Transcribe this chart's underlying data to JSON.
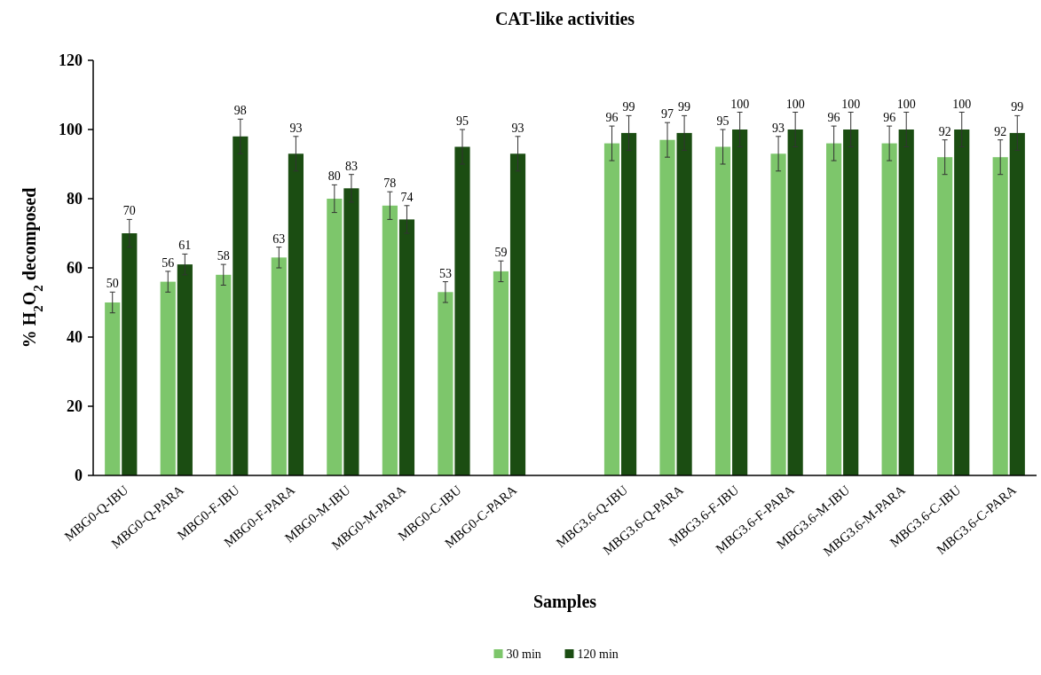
{
  "chart_data": {
    "type": "bar",
    "title": "CAT-like activities",
    "xlabel": "Samples",
    "ylabel": "% H$_{2}$O$_{2}$ decomposed",
    "categories": [
      "MBG0-Q-IBU",
      "MBG0-Q-PARA",
      "MBG0-F-IBU",
      "MBG0-F-PARA",
      "MBG0-M-IBU",
      "MBG0-M-PARA",
      "MBG0-C-IBU",
      "MBG0-C-PARA",
      null,
      "MBG3.6-Q-IBU",
      "MBG3.6-Q-PARA",
      "MBG3.6-F-IBU",
      "MBG3.6-F-PARA",
      "MBG3.6-M-IBU",
      "MBG3.6-M-PARA",
      "MBG3.6-C-IBU",
      "MBG3.6-C-PARA"
    ],
    "series": [
      {
        "name": "30 min",
        "color": "#7dc66b",
        "values": [
          50,
          56,
          58,
          63,
          80,
          78,
          53,
          59,
          null,
          96,
          97,
          95,
          93,
          96,
          96,
          92,
          92
        ],
        "errors": [
          3,
          3,
          3,
          3,
          4,
          4,
          3,
          3,
          null,
          5,
          5,
          5,
          5,
          5,
          5,
          5,
          5
        ]
      },
      {
        "name": "120 min",
        "color": "#1b4d12",
        "values": [
          70,
          61,
          98,
          93,
          83,
          74,
          95,
          93,
          null,
          99,
          99,
          100,
          100,
          100,
          100,
          100,
          99
        ],
        "errors": [
          4,
          3,
          5,
          5,
          4,
          4,
          5,
          5,
          null,
          5,
          5,
          5,
          5,
          5,
          5,
          5,
          5
        ]
      }
    ],
    "ylim": [
      0,
      120
    ],
    "yticks": [
      0,
      20,
      40,
      60,
      80,
      100,
      120
    ],
    "data_labels": true,
    "legend": "bottom",
    "grid": false
  }
}
